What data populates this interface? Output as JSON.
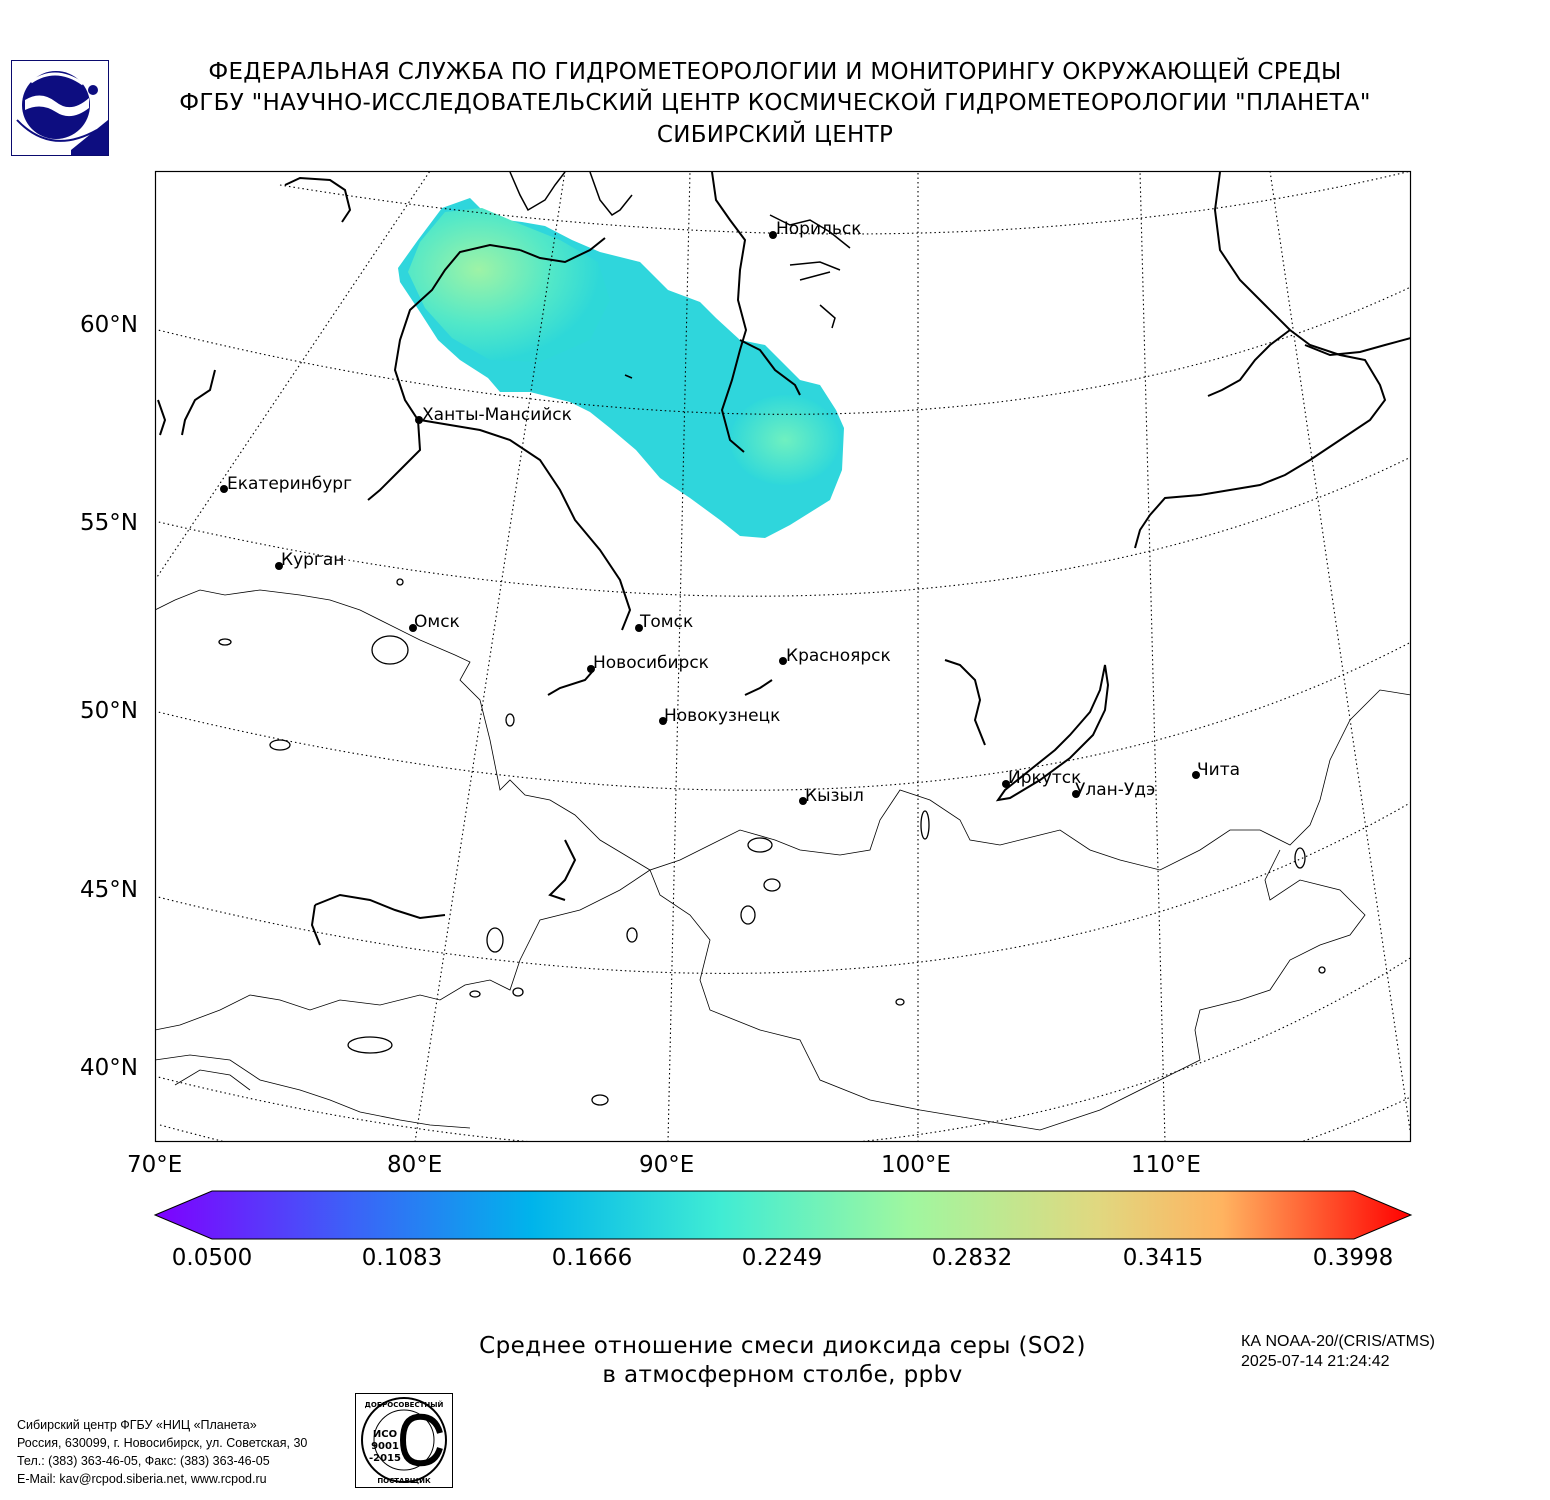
{
  "header": {
    "line1": "ФЕДЕРАЛЬНАЯ СЛУЖБА ПО ГИДРОМЕТЕОРОЛОГИИ И МОНИТОРИНГУ ОКРУЖАЮЩЕЙ СРЕДЫ",
    "line2": "ФГБУ \"НАУЧНО-ИССЛЕДОВАТЕЛЬСКИЙ ЦЕНТР КОСМИЧЕСКОЙ ГИДРОМЕТЕОРОЛОГИИ \"ПЛАНЕТА\"",
    "line3": "СИБИРСКИЙ ЦЕНТР"
  },
  "map": {
    "lat_labels": [
      "60°N",
      "55°N",
      "50°N",
      "45°N",
      "40°N"
    ],
    "lon_labels": [
      "70°E",
      "80°E",
      "90°E",
      "100°E",
      "110°E"
    ],
    "cities": [
      {
        "name": "Норильск"
      },
      {
        "name": "Ханты-Мансийск"
      },
      {
        "name": "Екатеринбург"
      },
      {
        "name": "Курган"
      },
      {
        "name": "Омск"
      },
      {
        "name": "Томск"
      },
      {
        "name": "Новосибирск"
      },
      {
        "name": "Красноярск"
      },
      {
        "name": "Новокузнецк"
      },
      {
        "name": "Кызыл"
      },
      {
        "name": "Иркутск"
      },
      {
        "name": "Улан-Удэ"
      },
      {
        "name": "Чита"
      }
    ]
  },
  "colorbar": {
    "ticks": [
      "0.0500",
      "0.1083",
      "0.1666",
      "0.2249",
      "0.2832",
      "0.3415",
      "0.3998"
    ],
    "colors": [
      "#7f00ff",
      "#3f5ef8",
      "#00b4eb",
      "#40ecd4",
      "#9ff7a0",
      "#ffb360",
      "#ff0000"
    ]
  },
  "caption": {
    "line1": "Среднее отношение смеси диоксида серы (SO2)",
    "line2": "в атмосферном столбе, ppbv"
  },
  "satellite": {
    "name": "КА NOAA-20/(CRIS/ATMS)",
    "datetime": "2025-07-14 21:24:42"
  },
  "contact": {
    "line1": "Сибирский центр ФГБУ «НИЦ «Планета»",
    "line2": "Россия, 630099, г. Новосибирск, ул. Советская, 30",
    "line3": "Тел.: (383) 363-46-05, Факс: (383) 363-46-05",
    "line4": "E-Mail: kav@rcpod.siberia.net, www.rcpod.ru"
  },
  "iso_badge": {
    "top_text": "ДОБРОСОВЕСТНЫЙ",
    "code": "ИСО",
    "number": "9001",
    "year": "-2015",
    "bottom_text": "ПОСТАВЩИК"
  }
}
